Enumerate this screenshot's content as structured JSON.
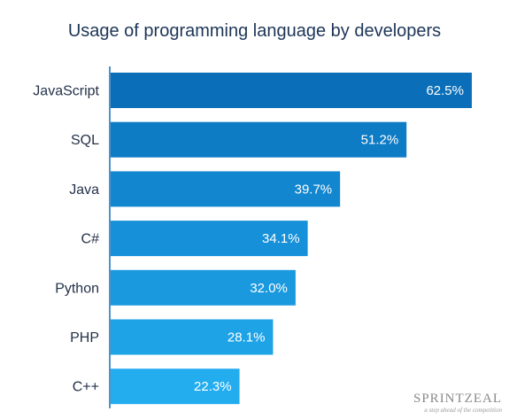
{
  "chart_data": {
    "type": "bar",
    "orientation": "horizontal",
    "title": "Usage of programming language by developers",
    "categories": [
      "JavaScript",
      "SQL",
      "Java",
      "C#",
      "Python",
      "PHP",
      "C++"
    ],
    "values": [
      62.5,
      51.2,
      39.7,
      34.1,
      32.0,
      28.1,
      22.3
    ],
    "value_labels": [
      "62.5%",
      "51.2%",
      "39.7%",
      "34.1%",
      "32.0%",
      "28.1%",
      "22.3%"
    ],
    "colors": [
      "#0a6fb8",
      "#0e7bc5",
      "#1286cf",
      "#1690d8",
      "#1a99df",
      "#1ea3e6",
      "#23adee"
    ],
    "xlim": [
      0,
      62.5
    ],
    "grid": false,
    "xlabel": "",
    "ylabel": ""
  },
  "branding": {
    "name": "SPRINTZEAL",
    "tagline": "a step ahead of the competition"
  }
}
